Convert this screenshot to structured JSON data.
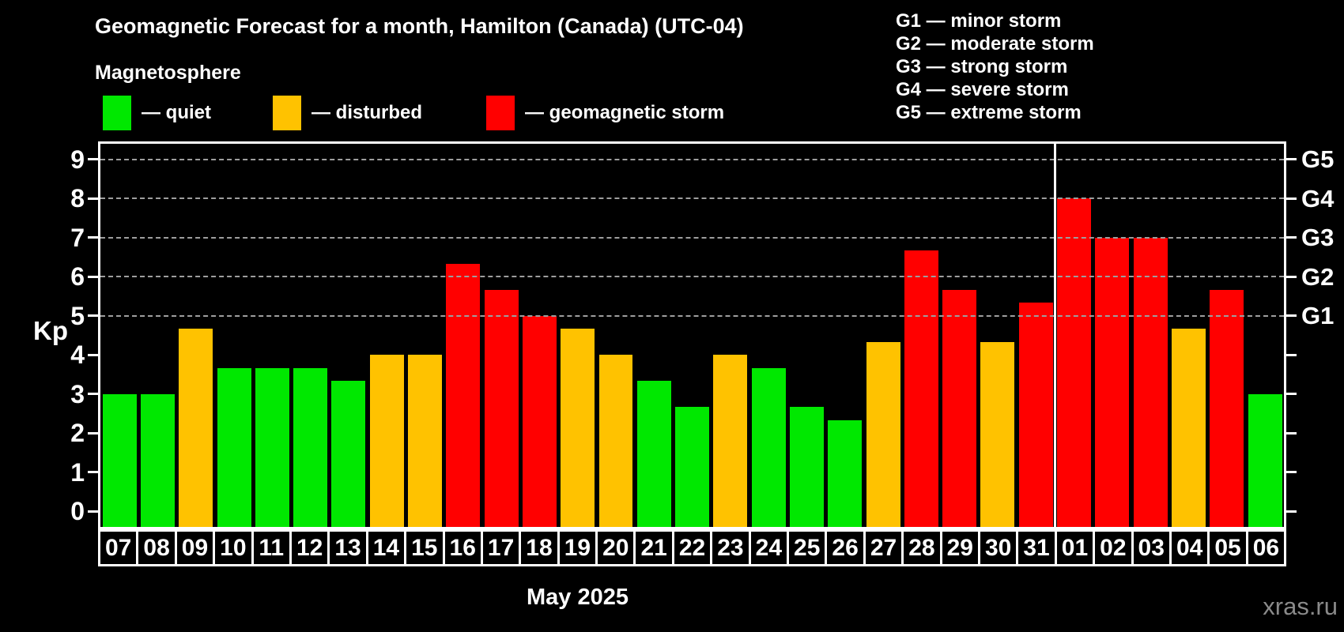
{
  "header": {
    "title": "Geomagnetic Forecast for a month, Hamilton (Canada) (UTC-04)",
    "subtitle": "Magnetosphere",
    "legend": [
      {
        "status": "quiet",
        "label": "— quiet"
      },
      {
        "status": "disturbed",
        "label": "— disturbed"
      },
      {
        "status": "storm",
        "label": "— geomagnetic storm"
      }
    ],
    "g_scale_legend": [
      "G1 — minor storm",
      "G2 — moderate storm",
      "G3 — strong storm",
      "G4 — severe storm",
      "G5 — extreme storm"
    ]
  },
  "colors": {
    "quiet": "#00e800",
    "disturbed": "#ffc200",
    "storm": "#ff0000",
    "background": "#000000",
    "text": "#ffffff",
    "grid": "#9e9e9e",
    "watermark": "#8a8a8a"
  },
  "chart_data": {
    "type": "bar",
    "title": "Geomagnetic Forecast for a month, Hamilton (Canada) (UTC-04)",
    "xlabel": "May 2025",
    "ylabel": "Kp",
    "ylim": [
      0,
      9
    ],
    "axis": {
      "ymin": -0.4,
      "ymax": 9.4
    },
    "yticks": [
      0,
      1,
      2,
      3,
      4,
      5,
      6,
      7,
      8,
      9
    ],
    "gridlines_at": [
      5,
      6,
      7,
      8,
      9
    ],
    "grid_style": "dashed",
    "legend_position": "top",
    "right_axis_labels": [
      {
        "kp": 5,
        "label": "G1"
      },
      {
        "kp": 6,
        "label": "G2"
      },
      {
        "kp": 7,
        "label": "G3"
      },
      {
        "kp": 8,
        "label": "G4"
      },
      {
        "kp": 9,
        "label": "G5"
      }
    ],
    "month_separator_after_index": 24,
    "bars": [
      {
        "day": "07",
        "kp": 3.0,
        "status": "quiet"
      },
      {
        "day": "08",
        "kp": 3.0,
        "status": "quiet"
      },
      {
        "day": "09",
        "kp": 4.67,
        "status": "disturbed"
      },
      {
        "day": "10",
        "kp": 3.67,
        "status": "quiet"
      },
      {
        "day": "11",
        "kp": 3.67,
        "status": "quiet"
      },
      {
        "day": "12",
        "kp": 3.67,
        "status": "quiet"
      },
      {
        "day": "13",
        "kp": 3.33,
        "status": "quiet"
      },
      {
        "day": "14",
        "kp": 4.0,
        "status": "disturbed"
      },
      {
        "day": "15",
        "kp": 4.0,
        "status": "disturbed"
      },
      {
        "day": "16",
        "kp": 6.33,
        "status": "storm"
      },
      {
        "day": "17",
        "kp": 5.67,
        "status": "storm"
      },
      {
        "day": "18",
        "kp": 5.0,
        "status": "storm"
      },
      {
        "day": "19",
        "kp": 4.67,
        "status": "disturbed"
      },
      {
        "day": "20",
        "kp": 4.0,
        "status": "disturbed"
      },
      {
        "day": "21",
        "kp": 3.33,
        "status": "quiet"
      },
      {
        "day": "22",
        "kp": 2.67,
        "status": "quiet"
      },
      {
        "day": "23",
        "kp": 4.0,
        "status": "disturbed"
      },
      {
        "day": "24",
        "kp": 3.67,
        "status": "quiet"
      },
      {
        "day": "25",
        "kp": 2.67,
        "status": "quiet"
      },
      {
        "day": "26",
        "kp": 2.33,
        "status": "quiet"
      },
      {
        "day": "27",
        "kp": 4.33,
        "status": "disturbed"
      },
      {
        "day": "28",
        "kp": 6.67,
        "status": "storm"
      },
      {
        "day": "29",
        "kp": 5.67,
        "status": "storm"
      },
      {
        "day": "30",
        "kp": 4.33,
        "status": "disturbed"
      },
      {
        "day": "31",
        "kp": 5.33,
        "status": "storm"
      },
      {
        "day": "01",
        "kp": 8.0,
        "status": "storm"
      },
      {
        "day": "02",
        "kp": 7.0,
        "status": "storm"
      },
      {
        "day": "03",
        "kp": 7.0,
        "status": "storm"
      },
      {
        "day": "04",
        "kp": 4.67,
        "status": "disturbed"
      },
      {
        "day": "05",
        "kp": 5.67,
        "status": "storm"
      },
      {
        "day": "06",
        "kp": 3.0,
        "status": "quiet"
      }
    ]
  },
  "footer": {
    "month_label": "May 2025",
    "watermark": "xras.ru"
  }
}
